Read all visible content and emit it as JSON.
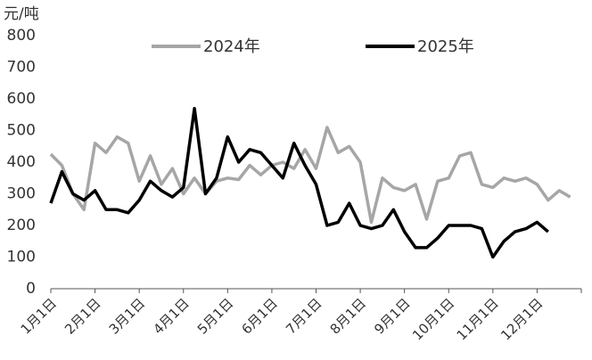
{
  "chart_data": {
    "type": "line",
    "y_label": "元/吨",
    "categories": [
      "1月1日",
      null,
      null,
      null,
      "2月1日",
      null,
      null,
      null,
      "3月1日",
      null,
      null,
      null,
      "4月1日",
      null,
      null,
      null,
      "5月1日",
      null,
      null,
      null,
      "6月1日",
      null,
      null,
      null,
      "7月1日",
      null,
      null,
      null,
      "8月1日",
      null,
      null,
      null,
      "9月1日",
      null,
      null,
      null,
      "10月1日",
      null,
      null,
      null,
      "11月1日",
      null,
      null,
      null,
      "12月1日",
      null,
      null,
      null
    ],
    "series": [
      {
        "name": "2024年",
        "color": "#a6a6a6",
        "values": [
          425,
          390,
          300,
          250,
          460,
          430,
          480,
          460,
          340,
          420,
          330,
          380,
          300,
          350,
          300,
          340,
          350,
          345,
          390,
          360,
          390,
          400,
          380,
          440,
          380,
          510,
          430,
          450,
          400,
          210,
          350,
          320,
          310,
          330,
          220,
          340,
          350,
          420,
          430,
          330,
          320,
          350,
          340,
          350,
          330,
          280,
          310,
          290
        ]
      },
      {
        "name": "2025年",
        "color": "#000000",
        "values": [
          270,
          370,
          300,
          280,
          310,
          250,
          250,
          240,
          280,
          340,
          310,
          290,
          320,
          570,
          300,
          350,
          480,
          400,
          440,
          430,
          390,
          350,
          460,
          390,
          330,
          200,
          210,
          270,
          200,
          190,
          200,
          250,
          180,
          130,
          130,
          160,
          200,
          200,
          200,
          190,
          100,
          150,
          180,
          190,
          210,
          180,
          null,
          null
        ]
      }
    ],
    "ylim": [
      0,
      800
    ],
    "yticks": [
      0,
      100,
      200,
      300,
      400,
      500,
      600,
      700,
      800
    ],
    "grid": false
  }
}
